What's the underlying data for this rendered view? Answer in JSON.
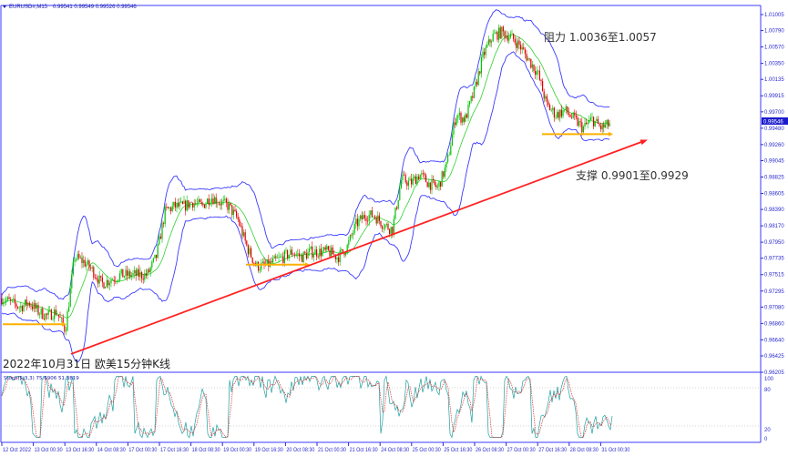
{
  "header": {
    "symbol": "EURUSD#,M15",
    "ohlc": "0.99541 0.99549 0.99526 0.99546"
  },
  "current_price": "0.99546",
  "annotations": {
    "resistance": "阻力 1.0036至1.0057",
    "support": "支撑 0.9901至0.9929",
    "caption": "2022年10月31日 欧美15分钟K线"
  },
  "stoch": {
    "label": "Stoch(5,3,3) 75.6906 51.3819",
    "levels": [
      "100",
      "80",
      "20",
      "0"
    ]
  },
  "colors": {
    "bull": "#00c000",
    "bear": "#e00000",
    "bands": "#3a3aff",
    "trendline": "#ff2020",
    "level_line": "#ffb000",
    "axis": "#2b2bd0",
    "stoch_main": "#20a0a0",
    "stoch_signal": "#e03030"
  },
  "chart_data": {
    "type": "candlestick",
    "price_ticks": [
      "1.01005",
      "1.00790",
      "1.00570",
      "1.00350",
      "1.00135",
      "0.99915",
      "0.99700",
      "0.99480",
      "0.99260",
      "0.99045",
      "0.98825",
      "0.98605",
      "0.98390",
      "0.98170",
      "0.97950",
      "0.97735",
      "0.97515",
      "0.97295",
      "0.97080",
      "0.96860",
      "0.96640",
      "0.96425",
      "0.96205"
    ],
    "ylim": [
      0.96205,
      1.01005
    ],
    "time_ticks": [
      "12 Oct 2022",
      "13 Oct 00:30",
      "13 Oct 16:30",
      "14 Oct 08:30",
      "17 Oct 00:30",
      "17 Oct 16:30",
      "18 Oct 08:30",
      "19 Oct 00:30",
      "19 Oct 16:30",
      "20 Oct 08:30",
      "21 Oct 00:30",
      "21 Oct 16:30",
      "24 Oct 08:30",
      "25 Oct 00:30",
      "25 Oct 16:30",
      "26 Oct 08:30",
      "27 Oct 00:30",
      "27 Oct 16:30",
      "28 Oct 08:30",
      "31 Oct 00:30"
    ],
    "close_path": [
      0.972,
      0.9714,
      0.9708,
      0.9714,
      0.9702,
      0.9696,
      0.9702,
      0.9677,
      0.9775,
      0.9769,
      0.9757,
      0.9739,
      0.9745,
      0.9751,
      0.9751,
      0.9751,
      0.9751,
      0.9775,
      0.9837,
      0.9843,
      0.9843,
      0.9849,
      0.9843,
      0.9856,
      0.9849,
      0.9843,
      0.9825,
      0.9788,
      0.9763,
      0.9763,
      0.9769,
      0.9775,
      0.9782,
      0.9775,
      0.9782,
      0.9782,
      0.9782,
      0.9775,
      0.9788,
      0.9819,
      0.9831,
      0.9831,
      0.9819,
      0.9812,
      0.988,
      0.9874,
      0.9886,
      0.9874,
      0.9868,
      0.9899,
      0.9966,
      0.996,
      0.9997,
      1.0046,
      1.0071,
      1.0077,
      1.0071,
      1.0059,
      1.004,
      1.0022,
      0.9979,
      0.9966,
      0.9972,
      0.996,
      0.9948,
      0.996,
      0.9948,
      0.9954
    ],
    "support_levels": [
      0.9685,
      0.9765,
      0.994
    ],
    "trendline": {
      "from_price": 0.9645,
      "to_price": 0.993
    },
    "stoch_range": [
      0,
      100
    ]
  }
}
